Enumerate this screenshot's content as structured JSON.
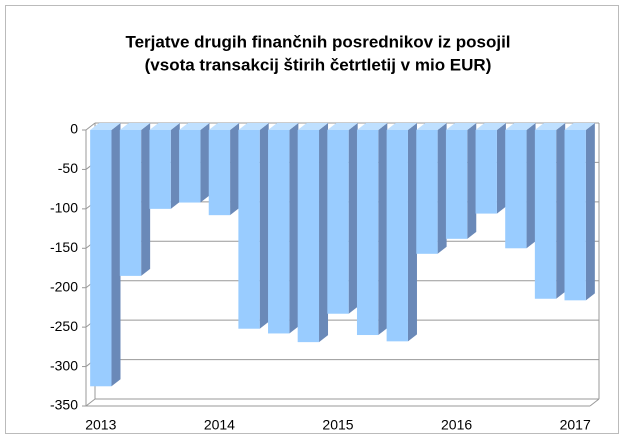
{
  "chart_data": {
    "type": "bar3d",
    "title": [
      "Terjatve drugih finančnih posrednikov iz posojil",
      "(vsota transakcij štirih četrtletij v mio EUR)"
    ],
    "categories": [
      "2013",
      null,
      null,
      null,
      "2014",
      null,
      null,
      null,
      "2015",
      null,
      null,
      null,
      "2016",
      null,
      null,
      null,
      "2017"
    ],
    "values": [
      -325,
      -185,
      -100,
      -92,
      -108,
      -252,
      -258,
      -269,
      -233,
      -260,
      -268,
      -157,
      -138,
      -106,
      -150,
      -214,
      -216
    ],
    "color": "#99ccff",
    "side_color": "#6a89b8",
    "ylim": [
      -350,
      0
    ],
    "yticks": [
      -350,
      -300,
      -250,
      -200,
      -150,
      -100,
      -50,
      0
    ],
    "grid": true
  }
}
